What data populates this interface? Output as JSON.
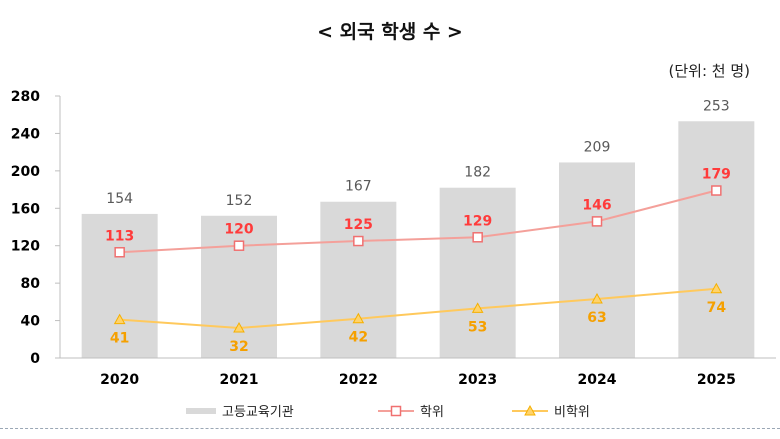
{
  "chart_data": {
    "type": "bar",
    "title": "< 외국 학생 수 >",
    "unit": "(단위: 천 명)",
    "categories": [
      "2020",
      "2021",
      "2022",
      "2023",
      "2024",
      "2025"
    ],
    "ylim": [
      0,
      280
    ],
    "yticks": [
      "0",
      "40",
      "80",
      "120",
      "160",
      "200",
      "240",
      "280"
    ],
    "grid": false,
    "legend_position": "bottom",
    "series": [
      {
        "name": "고등교육기관",
        "type": "bar",
        "color": "#d9d9d9",
        "label_color": "#595959",
        "values": [
          154,
          152,
          167,
          182,
          209,
          253
        ]
      },
      {
        "name": "학위",
        "type": "line",
        "marker": "square",
        "color": "#f4a09a",
        "label_color": "#ff3b3b",
        "values": [
          113,
          120,
          125,
          129,
          146,
          179
        ]
      },
      {
        "name": "비학위",
        "type": "line",
        "marker": "triangle",
        "color": "#ffc95c",
        "label_color": "#f5a000",
        "values": [
          41,
          32,
          42,
          53,
          63,
          74
        ]
      }
    ]
  }
}
